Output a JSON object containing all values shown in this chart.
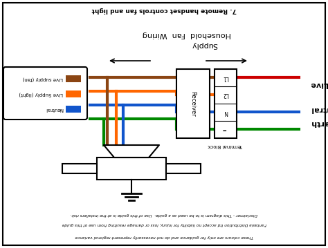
{
  "title_top": "7. Remote handset controls fan and light",
  "title_mid1": "Household  Fan  Wiring",
  "title_mid2": "Supply",
  "label_live": "Live",
  "label_neutral": "Neutral",
  "label_earth": "Earth",
  "label_terminal": "Terminal Block",
  "label_receiver": "Receiver",
  "legend_items": [
    {
      "label": "Live supply (fan)",
      "color": "#8B4513"
    },
    {
      "label": "Live Supply (light)",
      "color": "#FF6600"
    },
    {
      "label": "Neutral",
      "color": "#1155CC"
    }
  ],
  "disclaimer1": "Disclaimer - This diagram is to be used as a guide.  Use of this guide is at the installers risk.",
  "disclaimer2": "Fantasia Distribution ltd accept no liability for injury, loss or damage resulting from use of this guide",
  "disclaimer3": "These colours are only for guidance and do not necessarily represent regional variance",
  "wire_colors": {
    "live": "#CC0000",
    "neutral": "#1155CC",
    "earth": "#008800",
    "fan": "#8B4513",
    "light": "#FF6600"
  },
  "bg_color": "#FFFFFF",
  "border_color": "#000000"
}
